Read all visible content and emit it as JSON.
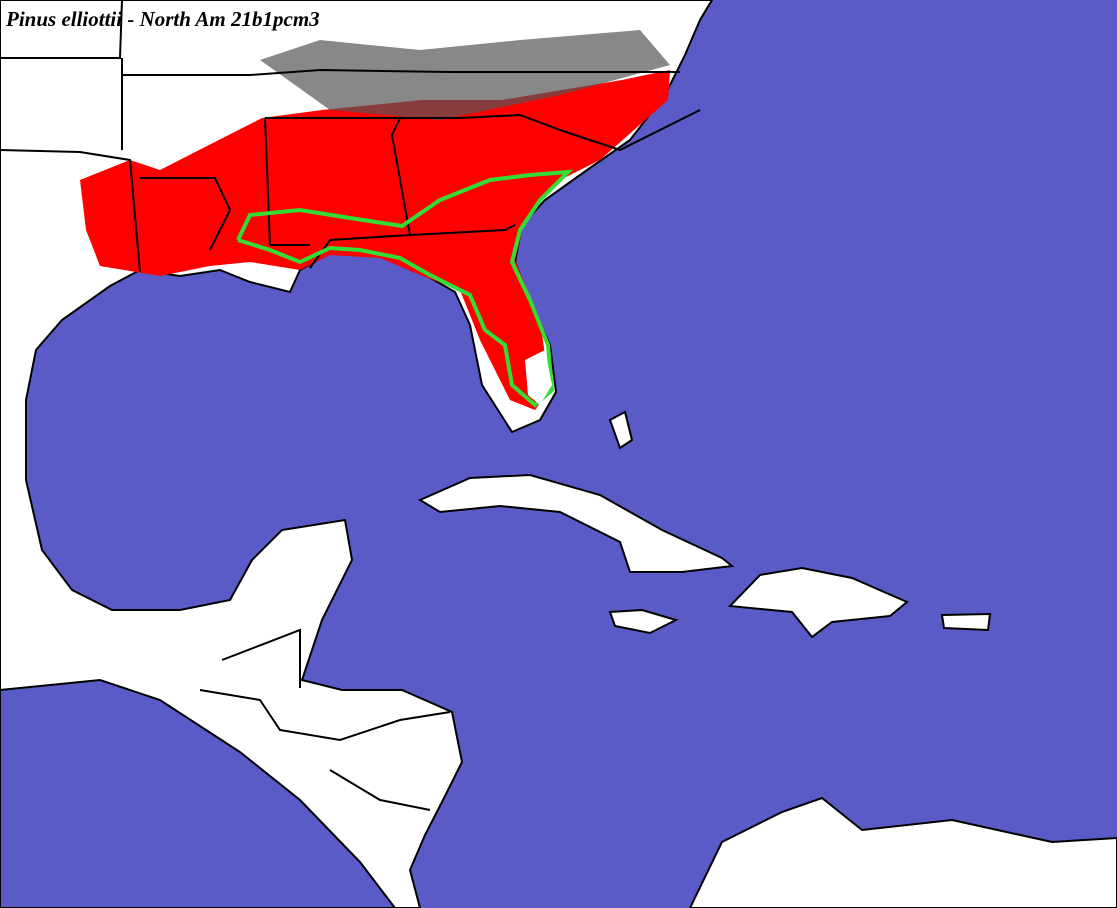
{
  "header": {
    "title": "Pinus elliottii - North Am 21b1pcm3"
  }
}
